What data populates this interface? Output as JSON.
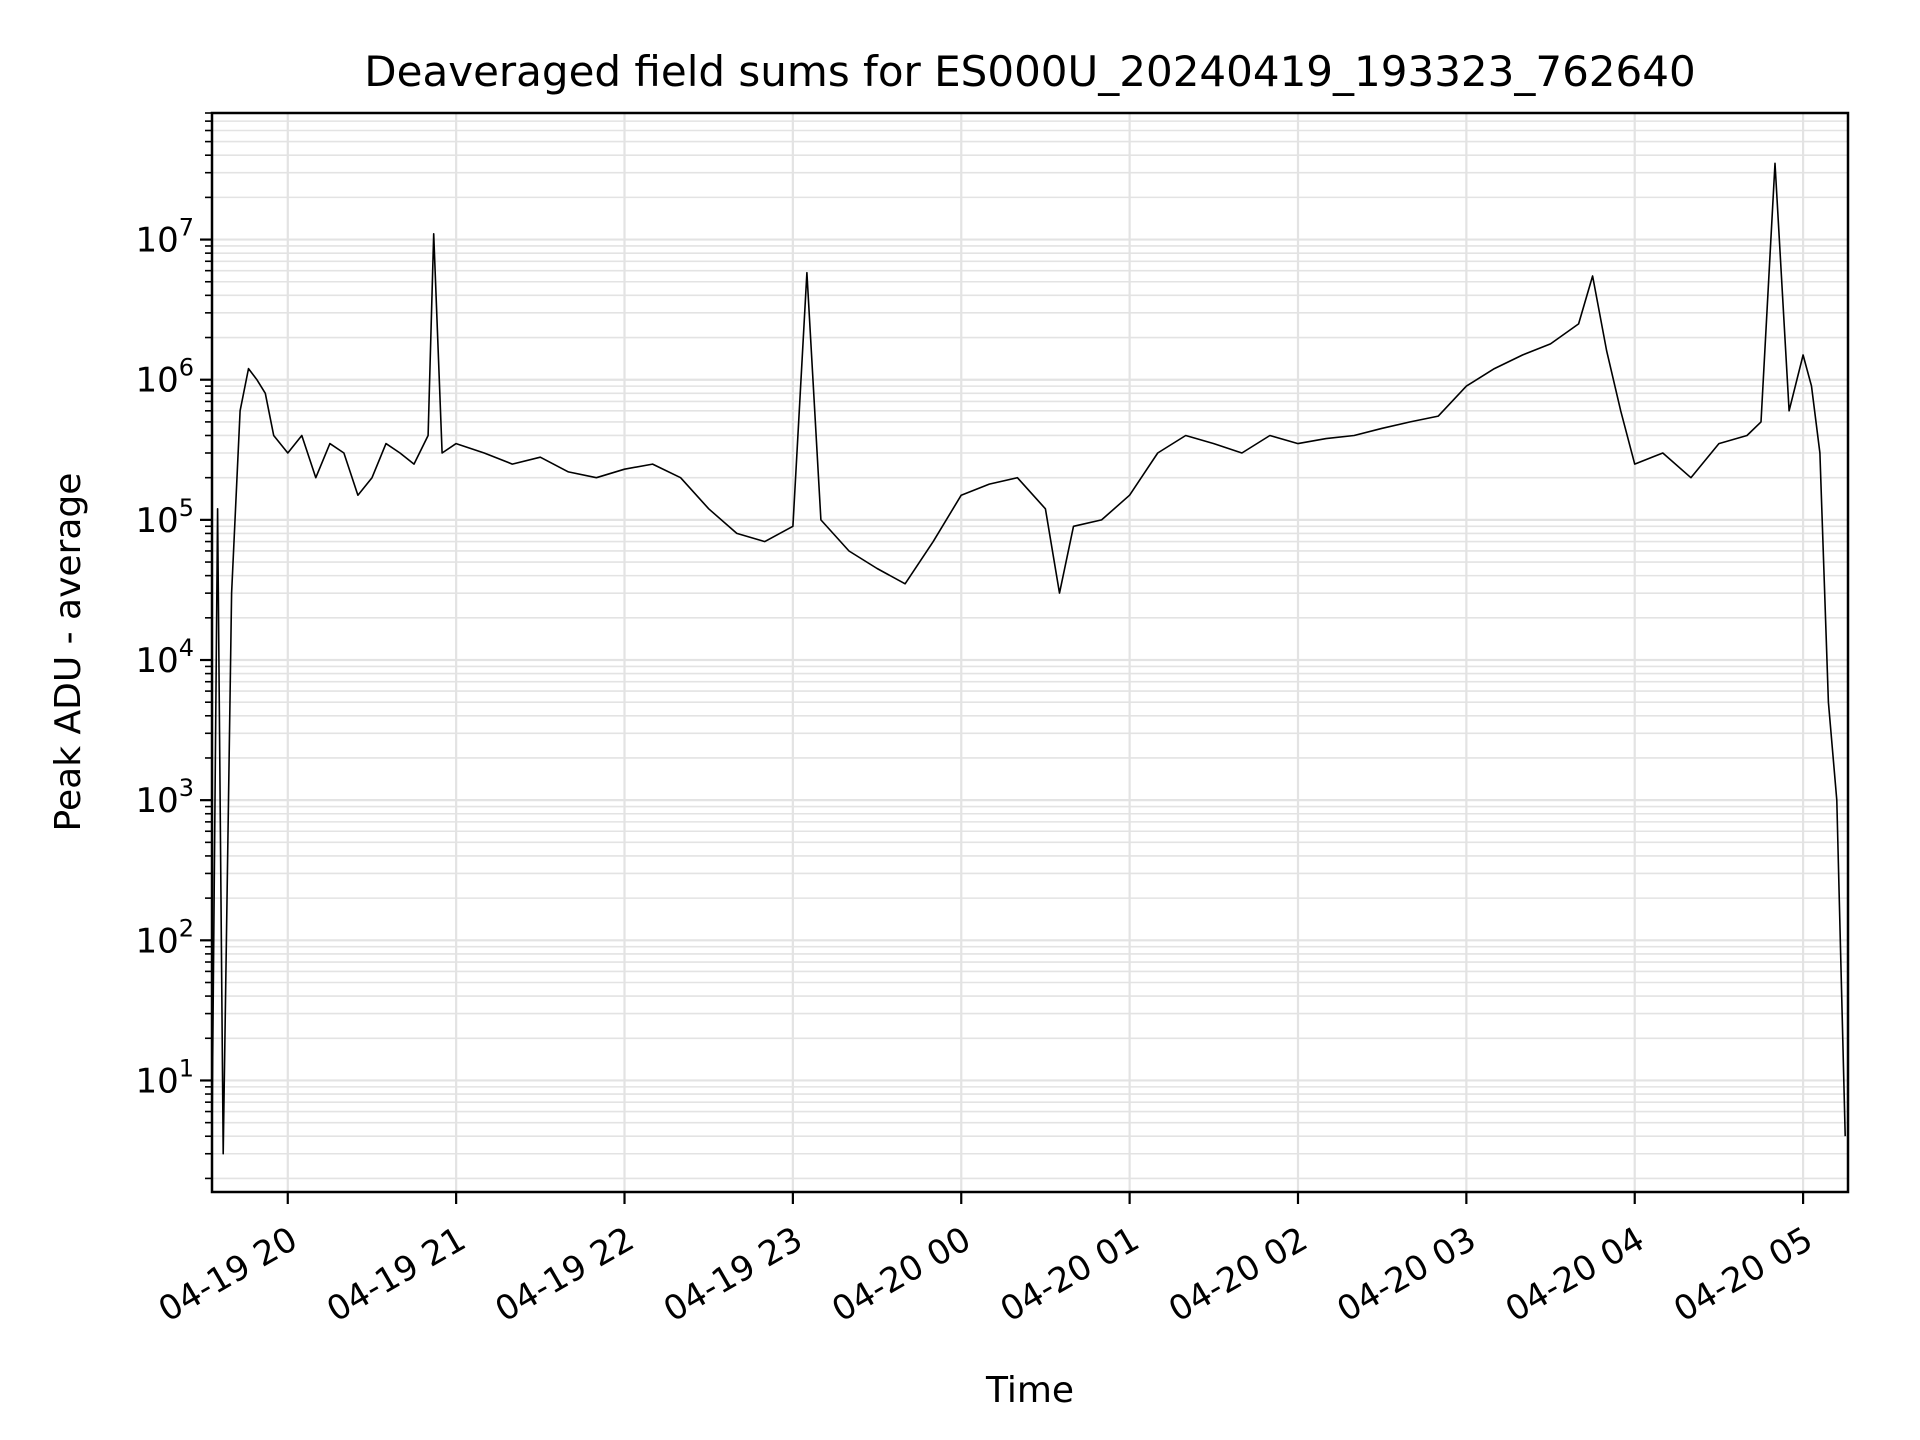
{
  "chart_data": {
    "type": "line",
    "title": "Deaveraged field sums for ES000U_20240419_193323_762640",
    "xlabel": "Time",
    "ylabel": "Peak ADU - average",
    "yscale": "log",
    "ylim": [
      1.6,
      80000000
    ],
    "xlim": [
      "2024-04-19 19:33",
      "2024-04-20 05:16"
    ],
    "x_ticks": [
      "04-19 20",
      "04-19 21",
      "04-19 22",
      "04-19 23",
      "04-20 00",
      "04-20 01",
      "04-20 02",
      "04-20 03",
      "04-20 04",
      "04-20 05"
    ],
    "y_ticks": [
      {
        "base": "10",
        "exp": "1",
        "value": 10
      },
      {
        "base": "10",
        "exp": "2",
        "value": 100
      },
      {
        "base": "10",
        "exp": "3",
        "value": 1000
      },
      {
        "base": "10",
        "exp": "4",
        "value": 10000
      },
      {
        "base": "10",
        "exp": "5",
        "value": 100000
      },
      {
        "base": "10",
        "exp": "6",
        "value": 1000000
      },
      {
        "base": "10",
        "exp": "7",
        "value": 10000000
      }
    ],
    "grid": true,
    "line_color": "#000000",
    "grid_color": "#e3e3e3",
    "series": [
      {
        "x": [
          "2024-04-19 19:33",
          "2024-04-19 19:35",
          "2024-04-19 19:37",
          "2024-04-19 19:40",
          "2024-04-19 19:43",
          "2024-04-19 19:46",
          "2024-04-19 19:49",
          "2024-04-19 19:52",
          "2024-04-19 19:55",
          "2024-04-19 20:00",
          "2024-04-19 20:05",
          "2024-04-19 20:10",
          "2024-04-19 20:15",
          "2024-04-19 20:20",
          "2024-04-19 20:25",
          "2024-04-19 20:30",
          "2024-04-19 20:35",
          "2024-04-19 20:40",
          "2024-04-19 20:45",
          "2024-04-19 20:50",
          "2024-04-19 20:52",
          "2024-04-19 20:55",
          "2024-04-19 21:00",
          "2024-04-19 21:10",
          "2024-04-19 21:20",
          "2024-04-19 21:30",
          "2024-04-19 21:40",
          "2024-04-19 21:50",
          "2024-04-19 22:00",
          "2024-04-19 22:10",
          "2024-04-19 22:20",
          "2024-04-19 22:30",
          "2024-04-19 22:40",
          "2024-04-19 22:50",
          "2024-04-19 23:00",
          "2024-04-19 23:05",
          "2024-04-19 23:10",
          "2024-04-19 23:20",
          "2024-04-19 23:30",
          "2024-04-19 23:40",
          "2024-04-19 23:50",
          "2024-04-20 00:00",
          "2024-04-20 00:10",
          "2024-04-20 00:20",
          "2024-04-20 00:30",
          "2024-04-20 00:35",
          "2024-04-20 00:40",
          "2024-04-20 00:50",
          "2024-04-20 01:00",
          "2024-04-20 01:10",
          "2024-04-20 01:20",
          "2024-04-20 01:30",
          "2024-04-20 01:40",
          "2024-04-20 01:50",
          "2024-04-20 02:00",
          "2024-04-20 02:10",
          "2024-04-20 02:20",
          "2024-04-20 02:30",
          "2024-04-20 02:40",
          "2024-04-20 02:50",
          "2024-04-20 03:00",
          "2024-04-20 03:10",
          "2024-04-20 03:20",
          "2024-04-20 03:30",
          "2024-04-20 03:40",
          "2024-04-20 03:45",
          "2024-04-20 03:50",
          "2024-04-20 03:55",
          "2024-04-20 04:00",
          "2024-04-20 04:10",
          "2024-04-20 04:20",
          "2024-04-20 04:30",
          "2024-04-20 04:40",
          "2024-04-20 04:45",
          "2024-04-20 04:50",
          "2024-04-20 04:55",
          "2024-04-20 05:00",
          "2024-04-20 05:03",
          "2024-04-20 05:06",
          "2024-04-20 05:09",
          "2024-04-20 05:12",
          "2024-04-20 05:15"
        ],
        "y": [
          4,
          120000,
          3,
          30000,
          600000,
          1200000,
          1000000,
          800000,
          400000,
          300000,
          400000,
          200000,
          350000,
          300000,
          150000,
          200000,
          350000,
          300000,
          250000,
          400000,
          11000000,
          300000,
          350000,
          300000,
          250000,
          280000,
          220000,
          200000,
          230000,
          250000,
          200000,
          120000,
          80000,
          70000,
          90000,
          5800000,
          100000,
          60000,
          45000,
          35000,
          70000,
          150000,
          180000,
          200000,
          120000,
          30000,
          90000,
          100000,
          150000,
          300000,
          400000,
          350000,
          300000,
          400000,
          350000,
          380000,
          400000,
          450000,
          500000,
          550000,
          900000,
          1200000,
          1500000,
          1800000,
          2500000,
          5500000,
          1600000,
          600000,
          250000,
          300000,
          200000,
          350000,
          400000,
          500000,
          35000000,
          600000,
          1500000,
          900000,
          300000,
          5000,
          1000,
          4
        ]
      }
    ]
  }
}
